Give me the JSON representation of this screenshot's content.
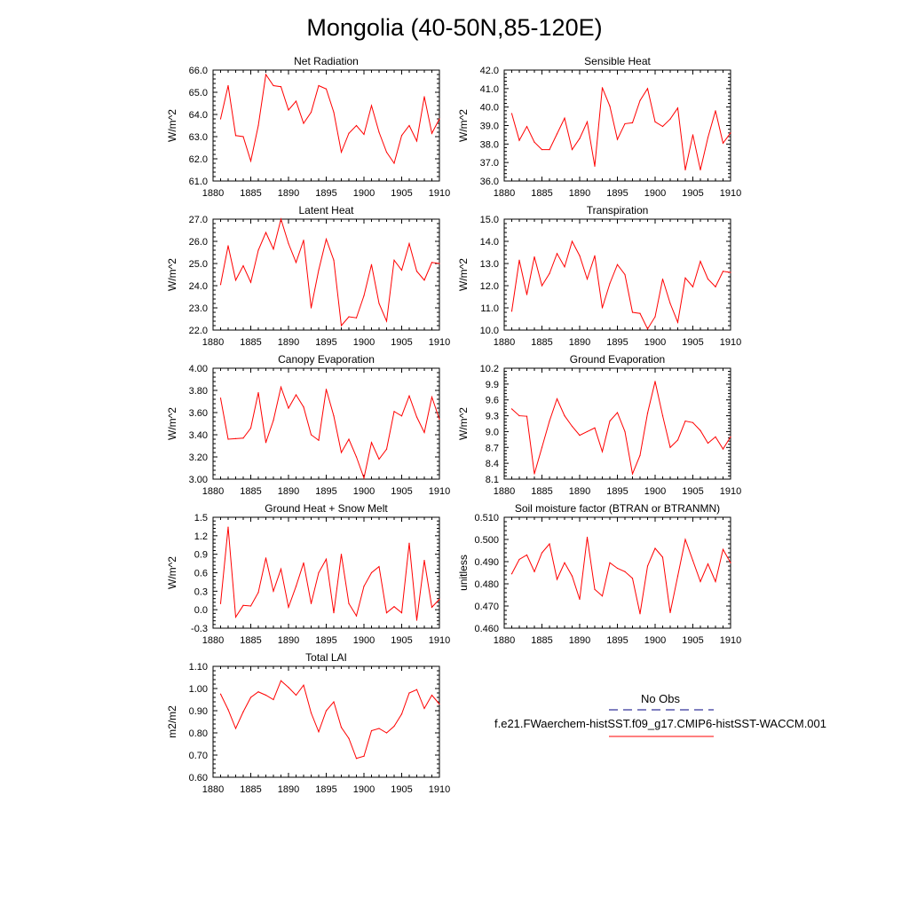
{
  "title": "Mongolia (40-50N,85-120E)",
  "line_color": "#ff0000",
  "obs_line_color": "#000080",
  "legend": {
    "obs_label": "No Obs",
    "model_label": "f.e21.FWaerchem-histSST.f09_g17.CMIP6-histSST-WACCM.001"
  },
  "chart_data": [
    {
      "type": "line",
      "title": "Net Radiation",
      "ylabel": "W/m^2",
      "xlim": [
        1880,
        1910
      ],
      "ylim": [
        61.0,
        66.0
      ],
      "xticks": [
        1880,
        1885,
        1890,
        1895,
        1900,
        1905,
        1910
      ],
      "yticks": [
        61.0,
        62.0,
        63.0,
        64.0,
        65.0,
        66.0
      ],
      "ytick_labels": [
        "61.0",
        "62.0",
        "63.0",
        "64.0",
        "65.0",
        "66.0"
      ],
      "x": [
        1881,
        1882,
        1883,
        1884,
        1885,
        1886,
        1887,
        1888,
        1889,
        1890,
        1891,
        1892,
        1893,
        1894,
        1895,
        1896,
        1897,
        1898,
        1899,
        1900,
        1901,
        1902,
        1903,
        1904,
        1905,
        1906,
        1907,
        1908,
        1909,
        1910
      ],
      "series": [
        {
          "values": [
            63.8,
            65.3,
            63.05,
            63.0,
            61.9,
            63.5,
            65.8,
            65.3,
            65.25,
            64.2,
            64.6,
            63.6,
            64.1,
            65.3,
            65.15,
            64.1,
            62.3,
            63.15,
            63.5,
            63.1,
            64.4,
            63.2,
            62.3,
            61.8,
            63.05,
            63.5,
            62.8,
            64.8,
            63.15,
            63.8
          ]
        }
      ]
    },
    {
      "type": "line",
      "title": "Sensible Heat",
      "ylabel": "W/m^2",
      "xlim": [
        1880,
        1910
      ],
      "ylim": [
        36.0,
        42.0
      ],
      "xticks": [
        1880,
        1885,
        1890,
        1895,
        1900,
        1905,
        1910
      ],
      "yticks": [
        36.0,
        37.0,
        38.0,
        39.0,
        40.0,
        41.0,
        42.0
      ],
      "ytick_labels": [
        "36.0",
        "37.0",
        "38.0",
        "39.0",
        "40.0",
        "41.0",
        "42.0"
      ],
      "x": [
        1881,
        1882,
        1883,
        1884,
        1885,
        1886,
        1887,
        1888,
        1889,
        1890,
        1891,
        1892,
        1893,
        1894,
        1895,
        1896,
        1897,
        1898,
        1899,
        1900,
        1901,
        1902,
        1903,
        1904,
        1905,
        1906,
        1907,
        1908,
        1909,
        1910
      ],
      "series": [
        {
          "values": [
            39.65,
            38.2,
            38.95,
            38.1,
            37.7,
            37.7,
            38.55,
            39.4,
            37.7,
            38.3,
            39.2,
            36.8,
            41.05,
            40.05,
            38.25,
            39.1,
            39.15,
            40.35,
            41.0,
            39.2,
            38.95,
            39.35,
            39.95,
            36.6,
            38.5,
            36.6,
            38.35,
            39.8,
            38.05,
            38.6
          ]
        }
      ]
    },
    {
      "type": "line",
      "title": "Latent Heat",
      "ylabel": "W/m^2",
      "xlim": [
        1880,
        1910
      ],
      "ylim": [
        22.0,
        27.0
      ],
      "xticks": [
        1880,
        1885,
        1890,
        1895,
        1900,
        1905,
        1910
      ],
      "yticks": [
        22.0,
        23.0,
        24.0,
        25.0,
        26.0,
        27.0
      ],
      "ytick_labels": [
        "22.0",
        "23.0",
        "24.0",
        "25.0",
        "26.0",
        "27.0"
      ],
      "x": [
        1881,
        1882,
        1883,
        1884,
        1885,
        1886,
        1887,
        1888,
        1889,
        1890,
        1891,
        1892,
        1893,
        1894,
        1895,
        1896,
        1897,
        1898,
        1899,
        1900,
        1901,
        1902,
        1903,
        1904,
        1905,
        1906,
        1907,
        1908,
        1909,
        1910
      ],
      "series": [
        {
          "values": [
            24.05,
            25.8,
            24.25,
            24.9,
            24.15,
            25.6,
            26.4,
            25.65,
            27.0,
            25.9,
            25.05,
            26.05,
            23.0,
            24.7,
            26.1,
            25.15,
            22.2,
            22.6,
            22.55,
            23.55,
            24.95,
            23.2,
            22.4,
            25.15,
            24.7,
            25.9,
            24.65,
            24.25,
            25.05,
            25.0
          ]
        }
      ]
    },
    {
      "type": "line",
      "title": "Transpiration",
      "ylabel": "W/m^2",
      "xlim": [
        1880,
        1910
      ],
      "ylim": [
        10.0,
        15.0
      ],
      "xticks": [
        1880,
        1885,
        1890,
        1895,
        1900,
        1905,
        1910
      ],
      "yticks": [
        10.0,
        11.0,
        12.0,
        13.0,
        14.0,
        15.0
      ],
      "ytick_labels": [
        "10.0",
        "11.0",
        "12.0",
        "13.0",
        "14.0",
        "15.0"
      ],
      "x": [
        1881,
        1882,
        1883,
        1884,
        1885,
        1886,
        1887,
        1888,
        1889,
        1890,
        1891,
        1892,
        1893,
        1894,
        1895,
        1896,
        1897,
        1898,
        1899,
        1900,
        1901,
        1902,
        1903,
        1904,
        1905,
        1906,
        1907,
        1908,
        1909,
        1910
      ],
      "series": [
        {
          "values": [
            10.85,
            13.15,
            11.6,
            13.3,
            12.0,
            12.55,
            13.45,
            12.85,
            14.0,
            13.35,
            12.3,
            13.35,
            11.0,
            12.1,
            12.95,
            12.5,
            10.8,
            10.75,
            10.05,
            10.6,
            12.3,
            11.2,
            10.35,
            12.35,
            11.95,
            13.1,
            12.3,
            11.95,
            12.65,
            12.6
          ]
        }
      ]
    },
    {
      "type": "line",
      "title": "Canopy Evaporation",
      "ylabel": "W/m^2",
      "xlim": [
        1880,
        1910
      ],
      "ylim": [
        3.0,
        4.0
      ],
      "xticks": [
        1880,
        1885,
        1890,
        1895,
        1900,
        1905,
        1910
      ],
      "yticks": [
        3.0,
        3.2,
        3.4,
        3.6,
        3.8,
        4.0
      ],
      "ytick_labels": [
        "3.00",
        "3.20",
        "3.40",
        "3.60",
        "3.80",
        "4.00"
      ],
      "x": [
        1881,
        1882,
        1883,
        1884,
        1885,
        1886,
        1887,
        1888,
        1889,
        1890,
        1891,
        1892,
        1893,
        1894,
        1895,
        1896,
        1897,
        1898,
        1899,
        1900,
        1901,
        1902,
        1903,
        1904,
        1905,
        1906,
        1907,
        1908,
        1909,
        1910
      ],
      "series": [
        {
          "values": [
            3.73,
            3.36,
            3.365,
            3.37,
            3.46,
            3.78,
            3.33,
            3.53,
            3.83,
            3.64,
            3.76,
            3.65,
            3.4,
            3.35,
            3.81,
            3.57,
            3.24,
            3.36,
            3.2,
            3.01,
            3.33,
            3.18,
            3.27,
            3.61,
            3.57,
            3.75,
            3.56,
            3.42,
            3.74,
            3.54
          ]
        }
      ]
    },
    {
      "type": "line",
      "title": "Ground Evaporation",
      "ylabel": "W/m^2",
      "xlim": [
        1880,
        1910
      ],
      "ylim": [
        8.1,
        10.2
      ],
      "xticks": [
        1880,
        1885,
        1890,
        1895,
        1900,
        1905,
        1910
      ],
      "yticks": [
        8.1,
        8.4,
        8.7,
        9.0,
        9.3,
        9.6,
        9.9,
        10.2
      ],
      "ytick_labels": [
        "8.1",
        "8.4",
        "8.7",
        "9.0",
        "9.3",
        "9.6",
        "9.9",
        "10.2"
      ],
      "x": [
        1881,
        1882,
        1883,
        1884,
        1885,
        1886,
        1887,
        1888,
        1889,
        1890,
        1891,
        1892,
        1893,
        1894,
        1895,
        1896,
        1897,
        1898,
        1899,
        1900,
        1901,
        1902,
        1903,
        1904,
        1905,
        1906,
        1907,
        1908,
        1909,
        1910
      ],
      "series": [
        {
          "values": [
            9.43,
            9.3,
            9.29,
            8.2,
            8.7,
            9.2,
            9.62,
            9.3,
            9.1,
            8.93,
            9.0,
            9.07,
            8.62,
            9.2,
            9.36,
            9.0,
            8.2,
            8.55,
            9.35,
            9.95,
            9.3,
            8.7,
            8.84,
            9.2,
            9.17,
            9.02,
            8.78,
            8.9,
            8.67,
            8.9
          ]
        }
      ]
    },
    {
      "type": "line",
      "title": "Ground Heat + Snow Melt",
      "ylabel": "W/m^2",
      "xlim": [
        1880,
        1910
      ],
      "ylim": [
        -0.3,
        1.5
      ],
      "xticks": [
        1880,
        1885,
        1890,
        1895,
        1900,
        1905,
        1910
      ],
      "yticks": [
        -0.3,
        0.0,
        0.3,
        0.6,
        0.9,
        1.2,
        1.5
      ],
      "ytick_labels": [
        "-0.3",
        "0.0",
        "0.3",
        "0.6",
        "0.9",
        "1.2",
        "1.5"
      ],
      "x": [
        1881,
        1882,
        1883,
        1884,
        1885,
        1886,
        1887,
        1888,
        1889,
        1890,
        1891,
        1892,
        1893,
        1894,
        1895,
        1896,
        1897,
        1898,
        1899,
        1900,
        1901,
        1902,
        1903,
        1904,
        1905,
        1906,
        1907,
        1908,
        1909,
        1910
      ],
      "series": [
        {
          "values": [
            0.1,
            1.34,
            -0.12,
            0.07,
            0.06,
            0.28,
            0.84,
            0.3,
            0.66,
            0.04,
            0.38,
            0.76,
            0.1,
            0.6,
            0.82,
            -0.05,
            0.9,
            0.1,
            -0.1,
            0.38,
            0.6,
            0.7,
            -0.05,
            0.05,
            -0.05,
            1.08,
            -0.17,
            0.8,
            0.04,
            0.17
          ]
        }
      ]
    },
    {
      "type": "line",
      "title": "Soil moisture factor (BTRAN or BTRANMN)",
      "ylabel": "unitless",
      "xlim": [
        1880,
        1910
      ],
      "ylim": [
        0.46,
        0.51
      ],
      "xticks": [
        1880,
        1885,
        1890,
        1895,
        1900,
        1905,
        1910
      ],
      "yticks": [
        0.46,
        0.47,
        0.48,
        0.49,
        0.5,
        0.51
      ],
      "ytick_labels": [
        "0.460",
        "0.470",
        "0.480",
        "0.490",
        "0.500",
        "0.510"
      ],
      "x": [
        1881,
        1882,
        1883,
        1884,
        1885,
        1886,
        1887,
        1888,
        1889,
        1890,
        1891,
        1892,
        1893,
        1894,
        1895,
        1896,
        1897,
        1898,
        1899,
        1900,
        1901,
        1902,
        1903,
        1904,
        1905,
        1906,
        1907,
        1908,
        1909,
        1910
      ],
      "series": [
        {
          "values": [
            0.4845,
            0.491,
            0.493,
            0.4855,
            0.494,
            0.498,
            0.482,
            0.4895,
            0.4835,
            0.473,
            0.501,
            0.4775,
            0.4745,
            0.4895,
            0.487,
            0.4855,
            0.4825,
            0.4665,
            0.488,
            0.496,
            0.492,
            0.467,
            0.4835,
            0.5,
            0.4905,
            0.481,
            0.489,
            0.481,
            0.4955,
            0.4895
          ]
        }
      ]
    },
    {
      "type": "line",
      "title": "Total LAI",
      "ylabel": "m2/m2",
      "xlim": [
        1880,
        1910
      ],
      "ylim": [
        0.6,
        1.1
      ],
      "xticks": [
        1880,
        1885,
        1890,
        1895,
        1900,
        1905,
        1910
      ],
      "yticks": [
        0.6,
        0.7,
        0.8,
        0.9,
        1.0,
        1.1
      ],
      "ytick_labels": [
        "0.60",
        "0.70",
        "0.80",
        "0.90",
        "1.00",
        "1.10"
      ],
      "x": [
        1881,
        1882,
        1883,
        1884,
        1885,
        1886,
        1887,
        1888,
        1889,
        1890,
        1891,
        1892,
        1893,
        1894,
        1895,
        1896,
        1897,
        1898,
        1899,
        1900,
        1901,
        1902,
        1903,
        1904,
        1905,
        1906,
        1907,
        1908,
        1909,
        1910
      ],
      "series": [
        {
          "values": [
            0.975,
            0.905,
            0.82,
            0.895,
            0.96,
            0.985,
            0.97,
            0.95,
            1.035,
            1.005,
            0.97,
            1.015,
            0.89,
            0.805,
            0.9,
            0.94,
            0.825,
            0.775,
            0.685,
            0.695,
            0.81,
            0.82,
            0.8,
            0.83,
            0.885,
            0.98,
            0.995,
            0.91,
            0.97,
            0.93
          ]
        }
      ]
    }
  ]
}
